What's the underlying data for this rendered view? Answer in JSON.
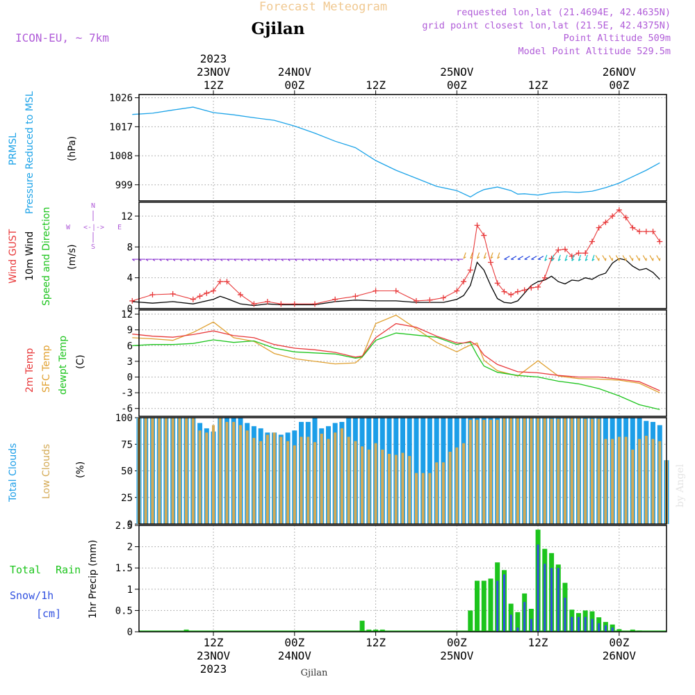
{
  "header": {
    "title": "Forecast Meteogram",
    "location": "Gjilan",
    "model": "ICON-EU, ~ 7km",
    "requested": "requested lon,lat (21.4694E, 42.4635N)",
    "grid_point": "grid point closest lon,lat (21.5E, 42.4375N)",
    "point_altitude": "Point Altitude 509m",
    "model_altitude": "Model Point Altitude 529.5m"
  },
  "footer": {
    "location": "Gjilan",
    "credit": "by Angel"
  },
  "time_axis": {
    "ticks": [
      {
        "hour": 12,
        "line1": "12Z",
        "line2": "23NOV",
        "line3": "2023"
      },
      {
        "hour": 24,
        "line1": "00Z",
        "line2": "24NOV",
        "line3": ""
      },
      {
        "hour": 36,
        "line1": "12Z",
        "line2": "",
        "line3": ""
      },
      {
        "hour": 48,
        "line1": "00Z",
        "line2": "25NOV",
        "line3": ""
      },
      {
        "hour": 60,
        "line1": "12Z",
        "line2": "",
        "line3": ""
      },
      {
        "hour": 72,
        "line1": "00Z",
        "line2": "26NOV",
        "line3": ""
      }
    ],
    "top_labels": [
      {
        "hour": 12,
        "line1": "2023",
        "line2": "23NOV",
        "line3": "12Z"
      },
      {
        "hour": 24,
        "line1": "",
        "line2": "24NOV",
        "line3": "00Z"
      },
      {
        "hour": 36,
        "line1": "",
        "line2": "",
        "line3": "12Z"
      },
      {
        "hour": 48,
        "line1": "",
        "line2": "25NOV",
        "line3": "00Z"
      },
      {
        "hour": 60,
        "line1": "",
        "line2": "",
        "line3": "12Z"
      },
      {
        "hour": 72,
        "line1": "",
        "line2": "26NOV",
        "line3": "00Z"
      }
    ]
  },
  "panel_labels": {
    "pressure": {
      "l1": "PRMSL",
      "l2": "Pressure Reduced to MSL",
      "unit": "(hPa)"
    },
    "wind": {
      "l1": "Wind GUST",
      "l2": "10m Wind",
      "l3": "Speed and Direction",
      "unit": "(m/s)",
      "compass_n": "N",
      "compass_s": "S",
      "compass_w": "W",
      "compass_e": "E",
      "compass_h": "<-|->"
    },
    "temp": {
      "l1": "2m Temp",
      "l2": "SFC Temp",
      "l3": "dewpt Temp",
      "unit": "(C)"
    },
    "clouds": {
      "l1": "Total Clouds",
      "l2": "Low Clouds",
      "unit": "(%)"
    },
    "precip": {
      "l1": "Total",
      "l1b": "Rain",
      "l2": "Snow/1h",
      "l3": "[cm]",
      "unit": "1hr Precip (mm)"
    }
  },
  "colors": {
    "pressure": "#1ca3e8",
    "gust": "#e8393a",
    "wind": "#000000",
    "temp2m": "#e8393a",
    "sfc": "#e0a030",
    "dewpt": "#1cc41c",
    "total_clouds": "#1c9ee8",
    "low_clouds": "#d4aa55",
    "rain": "#1cc41c",
    "snow": "#3050e0",
    "header_title": "#f0c890",
    "header_info": "#b05cd8"
  },
  "chart_data": [
    {
      "type": "line",
      "panel": "pressure",
      "ylabel": "(hPa)",
      "ylim": [
        994,
        1027
      ],
      "yticks": [
        999,
        1008,
        1017,
        1026
      ],
      "x": [
        0,
        3,
        6,
        9,
        12,
        15,
        18,
        21,
        24,
        27,
        30,
        33,
        36,
        39,
        42,
        45,
        48,
        50,
        51,
        52,
        54,
        56,
        57,
        58,
        60,
        62,
        64,
        66,
        68,
        70,
        72,
        74,
        76,
        78
      ],
      "series": [
        {
          "key": "pressure",
          "values": [
            1020.8,
            1021.2,
            1022.2,
            1023.1,
            1021.4,
            1020.7,
            1019.8,
            1019,
            1017.2,
            1015,
            1012.5,
            1010.5,
            1006.5,
            1003.5,
            1001,
            998.5,
            997.2,
            995.2,
            996.5,
            997.5,
            998.3,
            997.2,
            996.1,
            996.2,
            995.8,
            996.5,
            996.8,
            996.6,
            997,
            998.1,
            999.5,
            1001.5,
            1003.5,
            1005.8
          ]
        }
      ]
    },
    {
      "type": "line",
      "panel": "wind",
      "ylabel": "(m/s)",
      "ylim": [
        0,
        13.8
      ],
      "yticks": [
        0,
        4,
        8,
        12
      ],
      "x": [
        0,
        3,
        6,
        9,
        10,
        11,
        12,
        13,
        14,
        16,
        18,
        20,
        22,
        24,
        27,
        30,
        33,
        36,
        39,
        42,
        44,
        46,
        48,
        49,
        50,
        51,
        52,
        53,
        54,
        55,
        56,
        57,
        58,
        59,
        60,
        61,
        62,
        63,
        64,
        65,
        66,
        67,
        68,
        69,
        70,
        71,
        72,
        73,
        74,
        75,
        76,
        77,
        78
      ],
      "series": [
        {
          "key": "gust",
          "values": [
            1.0,
            1.8,
            1.9,
            1.2,
            1.6,
            2.0,
            2.3,
            3.5,
            3.5,
            1.8,
            0.6,
            0.9,
            0.6,
            0.6,
            0.6,
            1.2,
            1.6,
            2.3,
            2.3,
            1.0,
            1.1,
            1.4,
            2.3,
            3.5,
            5.0,
            10.8,
            9.5,
            6.0,
            3.3,
            2.2,
            1.8,
            2.2,
            2.4,
            2.7,
            2.8,
            4.0,
            6.5,
            7.6,
            7.7,
            6.8,
            7.2,
            7.2,
            8.7,
            10.5,
            11.2,
            12.0,
            12.8,
            11.8,
            10.5,
            10.0,
            10.0,
            10.0,
            8.7
          ]
        },
        {
          "key": "wind",
          "values": [
            0.9,
            0.7,
            0.9,
            0.6,
            0.8,
            1.0,
            1.2,
            1.6,
            1.3,
            0.6,
            0.4,
            0.6,
            0.5,
            0.5,
            0.5,
            0.9,
            1.1,
            1.0,
            1.0,
            0.8,
            0.8,
            0.8,
            1.2,
            1.7,
            3.0,
            6.0,
            5.0,
            3.0,
            1.3,
            0.8,
            0.7,
            1.0,
            2.0,
            3.0,
            3.5,
            3.7,
            4.2,
            3.5,
            3.2,
            3.7,
            3.6,
            4.0,
            3.8,
            4.3,
            4.6,
            5.9,
            6.5,
            6.3,
            5.5,
            5.0,
            5.2,
            4.7,
            3.8
          ]
        }
      ],
      "barbs": [
        {
          "from": 0,
          "to": 48,
          "step": 1,
          "dir_deg": 90,
          "speed_ms": 6.4,
          "color": "#8a30d0"
        },
        {
          "from": 49,
          "to": 54,
          "step": 1,
          "dir_deg": 20,
          "speed_ms": 6.5,
          "color": "#e0a030"
        },
        {
          "from": 55,
          "to": 60,
          "step": 1,
          "dir_deg": 60,
          "speed_ms": 6.4,
          "color": "#3050e0"
        },
        {
          "from": 61,
          "to": 68,
          "step": 1,
          "dir_deg": 20,
          "speed_ms": 6.2,
          "color": "#10c0c0"
        },
        {
          "from": 69,
          "to": 78,
          "step": 1,
          "dir_deg": 330,
          "speed_ms": 6.2,
          "color": "#e0a030"
        }
      ]
    },
    {
      "type": "line",
      "panel": "temp",
      "ylabel": "(C)",
      "ylim": [
        -7.5,
        12.8
      ],
      "yticks": [
        -6,
        -3,
        0,
        3,
        6,
        9,
        12
      ],
      "x": [
        0,
        3,
        6,
        9,
        12,
        15,
        18,
        21,
        24,
        27,
        30,
        33,
        34,
        36,
        39,
        42,
        45,
        48,
        49,
        50,
        51,
        52,
        54,
        57,
        60,
        63,
        66,
        69,
        72,
        75,
        78
      ],
      "series": [
        {
          "key": "temp2m",
          "values": [
            8.2,
            7.8,
            7.6,
            8.1,
            8.8,
            7.9,
            7.5,
            6.2,
            5.5,
            5.2,
            4.7,
            3.8,
            4.0,
            7.5,
            10.2,
            9.5,
            7.8,
            6.5,
            6.5,
            6.8,
            6.0,
            4.2,
            2.4,
            1.0,
            0.8,
            0.3,
            0.0,
            0.0,
            -0.4,
            -0.9,
            -2.6
          ]
        },
        {
          "key": "sfc",
          "values": [
            7.5,
            7.3,
            7.0,
            8.5,
            10.5,
            7.5,
            6.8,
            4.5,
            3.5,
            3.0,
            2.5,
            2.7,
            3.8,
            10.2,
            11.8,
            9.2,
            6.6,
            4.8,
            5.5,
            6.1,
            6.5,
            3.2,
            1.2,
            0.2,
            3.1,
            0.2,
            -0.3,
            -0.4,
            -0.6,
            -1.2,
            -3.0
          ]
        },
        {
          "key": "dewpt",
          "values": [
            6.0,
            6.2,
            6.2,
            6.4,
            7.1,
            6.6,
            6.9,
            5.5,
            4.8,
            4.6,
            4.4,
            3.6,
            3.8,
            7.0,
            8.4,
            8.0,
            7.6,
            6.2,
            6.5,
            6.6,
            4.2,
            2.1,
            0.9,
            0.3,
            0.0,
            -0.8,
            -1.3,
            -2.2,
            -3.6,
            -5.3,
            -6.2
          ]
        }
      ]
    },
    {
      "type": "bar",
      "panel": "clouds",
      "ylabel": "(%)",
      "ylim": [
        0,
        100
      ],
      "yticks": [
        0,
        25,
        50,
        75,
        100
      ],
      "series": [
        {
          "key": "total_clouds",
          "values": [
            100,
            100,
            100,
            100,
            100,
            100,
            100,
            100,
            100,
            95,
            90,
            87,
            100,
            100,
            100,
            100,
            95,
            92,
            90,
            86,
            86,
            84,
            86,
            88,
            96,
            96,
            100,
            90,
            92,
            95,
            96,
            100,
            100,
            100,
            100,
            100,
            100,
            100,
            100,
            100,
            100,
            100,
            100,
            100,
            100,
            100,
            100,
            100,
            100,
            100,
            100,
            100,
            100,
            100,
            100,
            100,
            100,
            100,
            100,
            100,
            100,
            100,
            100,
            100,
            100,
            100,
            100,
            100,
            100,
            100,
            100,
            100,
            100,
            100,
            100,
            97,
            96,
            93,
            60
          ]
        },
        {
          "key": "low_clouds",
          "values": [
            100,
            100,
            100,
            100,
            100,
            100,
            100,
            100,
            100,
            88,
            86,
            93,
            100,
            96,
            96,
            93,
            88,
            81,
            78,
            84,
            86,
            82,
            78,
            74,
            82,
            82,
            77,
            85,
            80,
            86,
            90,
            82,
            78,
            73,
            70,
            76,
            70,
            66,
            65,
            67,
            64,
            48,
            48,
            48,
            58,
            58,
            68,
            72,
            76,
            98,
            98,
            98,
            98,
            98,
            100,
            100,
            100,
            100,
            100,
            100,
            100,
            99,
            99,
            100,
            100,
            100,
            99,
            99,
            99,
            80,
            80,
            82,
            82,
            70,
            80,
            83,
            80,
            78,
            60
          ]
        }
      ]
    },
    {
      "type": "bar",
      "panel": "precip",
      "ylabel": "1hr Precip (mm)",
      "ylim": [
        0,
        2.5
      ],
      "yticks": [
        0,
        0.5,
        1,
        1.5,
        2,
        2.5
      ],
      "x": [
        8,
        34,
        35,
        36,
        37,
        50,
        51,
        52,
        53,
        54,
        55,
        56,
        57,
        58,
        59,
        60,
        61,
        62,
        63,
        64,
        65,
        66,
        67,
        68,
        69,
        70,
        71,
        72,
        73,
        74,
        75,
        76
      ],
      "series": [
        {
          "key": "rain",
          "values": [
            0.05,
            0.26,
            0.05,
            0.05,
            0.05,
            0.5,
            1.2,
            1.2,
            1.25,
            1.63,
            1.45,
            0.66,
            0.46,
            0.9,
            0.54,
            2.4,
            1.95,
            1.85,
            1.58,
            1.15,
            0.52,
            0.44,
            0.5,
            0.48,
            0.34,
            0.23,
            0.17,
            0.06,
            0.01,
            0.05,
            0.03,
            0.01
          ]
        },
        {
          "key": "snow",
          "values": [
            0,
            0,
            0,
            0,
            0,
            0,
            0,
            0,
            0,
            1.2,
            1.35,
            0.4,
            0.1,
            0.7,
            0.3,
            2.05,
            1.6,
            1.5,
            1.5,
            0.8,
            0.35,
            0.35,
            0.35,
            0.3,
            0.2,
            0.15,
            0.1,
            0,
            0,
            0,
            0,
            0
          ]
        }
      ]
    }
  ]
}
